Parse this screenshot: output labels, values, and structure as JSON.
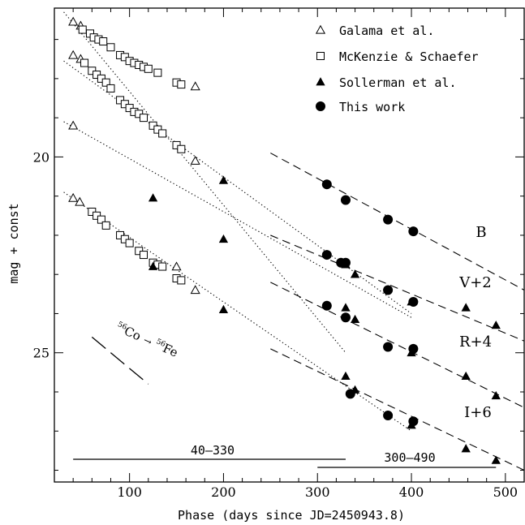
{
  "chart_data": {
    "type": "scatter",
    "xlabel": "Phase (days since JD=2450943.8)",
    "ylabel": "mag + const",
    "xlim": [
      20,
      520
    ],
    "ylim": [
      28.3,
      16.2
    ],
    "y_inverted": true,
    "x_ticks": [
      100,
      200,
      300,
      400,
      500
    ],
    "y_ticks": [
      20,
      25
    ],
    "x_minor_step": 20,
    "y_minor_step": 1,
    "legend": {
      "placement": "top-right",
      "entries": [
        {
          "label": "Galama et al.",
          "marker": "open-triangle"
        },
        {
          "label": "McKenzie & Schaefer",
          "marker": "open-square"
        },
        {
          "label": "Sollerman et al.",
          "marker": "filled-triangle"
        },
        {
          "label": "This work",
          "marker": "filled-circle"
        }
      ]
    },
    "band_labels": [
      {
        "text": "B",
        "x": 415,
        "y": 22.0
      },
      {
        "text": "V+2",
        "x": 415,
        "y": 23.35
      },
      {
        "text": "R+4",
        "x": 415,
        "y": 25.0
      },
      {
        "text": "I+6",
        "x": 415,
        "y": 26.7
      }
    ],
    "annotation": {
      "text_co": "Co",
      "mass_co": "56",
      "arrow": "→",
      "text_fe": "Fe",
      "mass_fe": "56",
      "line": [
        [
          60,
          24.6
        ],
        [
          120,
          25.8
        ]
      ]
    },
    "ranges": [
      {
        "label": "40–330",
        "x": [
          40,
          330
        ],
        "y": 28.3
      },
      {
        "label": "300–490",
        "x": [
          300,
          490
        ],
        "y": 28.55
      }
    ],
    "fits": [
      {
        "style": "dotted",
        "points": [
          [
            30,
            16.3
          ],
          [
            330,
            25.0
          ]
        ]
      },
      {
        "style": "dotted",
        "points": [
          [
            30,
            17.55
          ],
          [
            400,
            24.0
          ]
        ]
      },
      {
        "style": "dotted",
        "points": [
          [
            30,
            19.1
          ],
          [
            400,
            24.1
          ]
        ]
      },
      {
        "style": "dotted",
        "points": [
          [
            30,
            20.9
          ],
          [
            400,
            27.0
          ]
        ]
      },
      {
        "style": "dashed",
        "points": [
          [
            250,
            19.9
          ],
          [
            520,
            23.4
          ]
        ]
      },
      {
        "style": "dashed",
        "points": [
          [
            250,
            22.0
          ],
          [
            520,
            24.7
          ]
        ]
      },
      {
        "style": "dashed",
        "points": [
          [
            250,
            23.2
          ],
          [
            520,
            26.4
          ]
        ]
      },
      {
        "style": "dashed",
        "points": [
          [
            250,
            24.9
          ],
          [
            520,
            28.0
          ]
        ]
      }
    ],
    "series": [
      {
        "name": "Galama et al.",
        "marker": "open-triangle",
        "points": [
          [
            40,
            16.55
          ],
          [
            48,
            16.65
          ],
          [
            40,
            17.4
          ],
          [
            48,
            17.5
          ],
          [
            40,
            19.2
          ],
          [
            150,
            22.8
          ],
          [
            170,
            18.2
          ],
          [
            170,
            20.1
          ],
          [
            40,
            21.05
          ],
          [
            47,
            21.15
          ],
          [
            170,
            23.4
          ]
        ]
      },
      {
        "name": "McKenzie & Schaefer",
        "marker": "open-square",
        "points": [
          [
            50,
            16.75
          ],
          [
            58,
            16.85
          ],
          [
            62,
            16.95
          ],
          [
            67,
            17.0
          ],
          [
            72,
            17.05
          ],
          [
            80,
            17.2
          ],
          [
            90,
            17.4
          ],
          [
            95,
            17.45
          ],
          [
            100,
            17.55
          ],
          [
            105,
            17.6
          ],
          [
            110,
            17.65
          ],
          [
            115,
            17.7
          ],
          [
            120,
            17.75
          ],
          [
            130,
            17.85
          ],
          [
            150,
            18.1
          ],
          [
            155,
            18.15
          ],
          [
            52,
            17.6
          ],
          [
            60,
            17.8
          ],
          [
            65,
            17.9
          ],
          [
            70,
            18.0
          ],
          [
            75,
            18.1
          ],
          [
            80,
            18.25
          ],
          [
            90,
            18.55
          ],
          [
            95,
            18.65
          ],
          [
            100,
            18.75
          ],
          [
            105,
            18.85
          ],
          [
            110,
            18.9
          ],
          [
            115,
            19.0
          ],
          [
            125,
            19.2
          ],
          [
            130,
            19.3
          ],
          [
            135,
            19.4
          ],
          [
            150,
            19.7
          ],
          [
            155,
            19.8
          ],
          [
            60,
            21.4
          ],
          [
            65,
            21.5
          ],
          [
            70,
            21.6
          ],
          [
            75,
            21.75
          ],
          [
            90,
            22.0
          ],
          [
            95,
            22.1
          ],
          [
            100,
            22.2
          ],
          [
            110,
            22.4
          ],
          [
            115,
            22.5
          ],
          [
            125,
            22.7
          ],
          [
            130,
            22.75
          ],
          [
            135,
            22.8
          ],
          [
            150,
            23.1
          ],
          [
            155,
            23.15
          ]
        ]
      },
      {
        "name": "Sollerman et al.",
        "marker": "filled-triangle",
        "points": [
          [
            200,
            20.6
          ],
          [
            200,
            22.1
          ],
          [
            125,
            21.05
          ],
          [
            200,
            23.9
          ],
          [
            330,
            22.75
          ],
          [
            340,
            23.0
          ],
          [
            400,
            23.7
          ],
          [
            458,
            23.85
          ],
          [
            490,
            24.3
          ],
          [
            125,
            22.8
          ],
          [
            330,
            23.85
          ],
          [
            340,
            24.15
          ],
          [
            400,
            25.0
          ],
          [
            458,
            25.6
          ],
          [
            490,
            26.1
          ],
          [
            330,
            25.6
          ],
          [
            340,
            25.95
          ],
          [
            400,
            26.85
          ],
          [
            458,
            27.45
          ],
          [
            490,
            27.75
          ]
        ]
      },
      {
        "name": "This work",
        "marker": "filled-circle",
        "points": [
          [
            310,
            20.7
          ],
          [
            330,
            21.1
          ],
          [
            375,
            21.6
          ],
          [
            402,
            21.9
          ],
          [
            310,
            22.5
          ],
          [
            325,
            22.7
          ],
          [
            330,
            22.7
          ],
          [
            375,
            23.4
          ],
          [
            402,
            23.7
          ],
          [
            310,
            23.8
          ],
          [
            330,
            24.1
          ],
          [
            375,
            24.85
          ],
          [
            402,
            24.9
          ],
          [
            335,
            26.05
          ],
          [
            375,
            26.6
          ],
          [
            402,
            26.75
          ]
        ]
      }
    ]
  }
}
